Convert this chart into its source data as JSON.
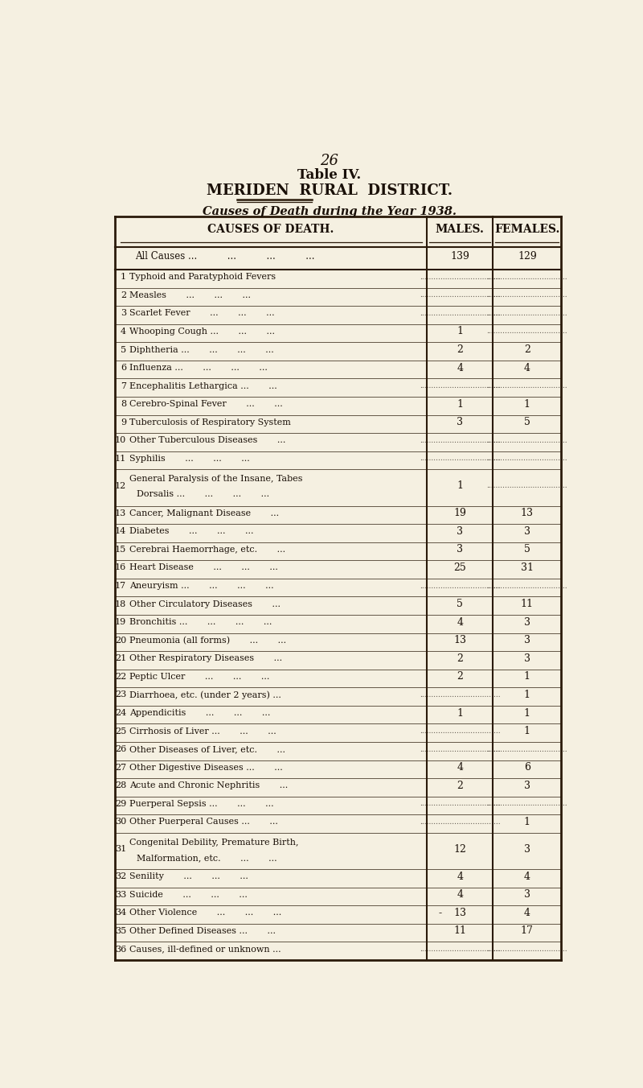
{
  "page_number": "26",
  "title_line1": "Table IV.",
  "title_line2": "MERIDEN  RURAL  DISTRICT.",
  "subtitle": "Causes of Death during the Year 1938.",
  "col_headers": [
    "CAUSES OF DEATH.",
    "MALES.",
    "FEMALES."
  ],
  "all_causes_label": "All Causes ...          ...          ...          ...",
  "all_causes_males": "139",
  "all_causes_females": "129",
  "rows": [
    {
      "num": "1",
      "cause": "Typhoid and Paratyphoid Fevers",
      "males": "",
      "females": "",
      "males_dots": true,
      "females_dots": true,
      "two_line": false
    },
    {
      "num": "2",
      "cause": "Measles       ...       ...       ...",
      "males": "",
      "females": "",
      "males_dots": true,
      "females_dots": true,
      "two_line": false
    },
    {
      "num": "3",
      "cause": "Scarlet Fever       ...       ...       ...",
      "males": "",
      "females": "",
      "males_dots": true,
      "females_dots": true,
      "two_line": false
    },
    {
      "num": "4",
      "cause": "Whooping Cough ...       ...       ...",
      "males": "1",
      "females": "",
      "males_dots": false,
      "females_dots": true,
      "two_line": false
    },
    {
      "num": "5",
      "cause": "Diphtheria ...       ...       ...       ...",
      "males": "2",
      "females": "2",
      "males_dots": false,
      "females_dots": false,
      "two_line": false
    },
    {
      "num": "6",
      "cause": "Influenza ...       ...       ...       ...",
      "males": "4",
      "females": "4",
      "males_dots": false,
      "females_dots": false,
      "two_line": false
    },
    {
      "num": "7",
      "cause": "Encephalitis Lethargica ...       ...",
      "males": "",
      "females": "",
      "males_dots": true,
      "females_dots": true,
      "two_line": false
    },
    {
      "num": "8",
      "cause": "Cerebro-Spinal Fever       ...       ...",
      "males": "1",
      "females": "1",
      "males_dots": false,
      "females_dots": false,
      "two_line": false
    },
    {
      "num": "9",
      "cause": "Tuberculosis of Respiratory System",
      "males": "3",
      "females": "5",
      "males_dots": false,
      "females_dots": false,
      "two_line": false
    },
    {
      "num": "10",
      "cause": "Other Tuberculous Diseases       ...",
      "males": "",
      "females": "",
      "males_dots": true,
      "females_dots": true,
      "two_line": false
    },
    {
      "num": "11",
      "cause": "Syphilis       ...       ...       ...",
      "males": "",
      "females": "",
      "males_dots": true,
      "females_dots": true,
      "two_line": false
    },
    {
      "num": "12",
      "cause": "General Paralysis of the Insane, Tabes",
      "cause2": "Dorsalis ...       ...       ...       ...",
      "males": "1",
      "females": "",
      "males_dots": false,
      "females_dots": true,
      "two_line": true
    },
    {
      "num": "13",
      "cause": "Cancer, Malignant Disease       ...",
      "males": "19",
      "females": "13",
      "males_dots": false,
      "females_dots": false,
      "two_line": false
    },
    {
      "num": "14",
      "cause": "Diabetes       ...       ...       ...",
      "males": "3",
      "females": "3",
      "males_dots": false,
      "females_dots": false,
      "two_line": false
    },
    {
      "num": "15",
      "cause": "Cerebrai Haemorrhage, etc.       ...",
      "males": "3",
      "females": "5",
      "males_dots": false,
      "females_dots": false,
      "two_line": false
    },
    {
      "num": "16",
      "cause": "Heart Disease       ...       ...       ...",
      "males": "25",
      "females": "31",
      "males_dots": false,
      "females_dots": false,
      "two_line": false
    },
    {
      "num": "17",
      "cause": "Aneuryism ...       ...       ...       ...",
      "males": "",
      "females": "",
      "males_dots": true,
      "females_dots": true,
      "two_line": false
    },
    {
      "num": "18",
      "cause": "Other Circulatory Diseases       ...",
      "males": "5",
      "females": "11",
      "males_dots": false,
      "females_dots": false,
      "two_line": false
    },
    {
      "num": "19",
      "cause": "Bronchitis ...       ...       ...       ...",
      "males": "4",
      "females": "3",
      "males_dots": false,
      "females_dots": false,
      "two_line": false
    },
    {
      "num": "20",
      "cause": "Pneumonia (all forms)       ...       ...",
      "males": "13",
      "females": "3",
      "males_dots": false,
      "females_dots": false,
      "two_line": false
    },
    {
      "num": "21",
      "cause": "Other Respiratory Diseases       ...",
      "males": "2",
      "females": "3",
      "males_dots": false,
      "females_dots": false,
      "two_line": false
    },
    {
      "num": "22",
      "cause": "Peptic Ulcer       ...       ...       ...",
      "males": "2",
      "females": "1",
      "males_dots": false,
      "females_dots": false,
      "two_line": false
    },
    {
      "num": "23",
      "cause": "Diarrhoea, etc. (under 2 years) ...",
      "males": "",
      "females": "1",
      "males_dots": true,
      "females_dots": false,
      "two_line": false
    },
    {
      "num": "24",
      "cause": "Appendicitis       ...       ...       ...",
      "males": "1",
      "females": "1",
      "males_dots": false,
      "females_dots": false,
      "two_line": false
    },
    {
      "num": "25",
      "cause": "Cirrhosis of Liver ...       ...       ...",
      "males": "",
      "females": "1",
      "males_dots": true,
      "females_dots": false,
      "two_line": false
    },
    {
      "num": "26",
      "cause": "Other Diseases of Liver, etc.       ...",
      "males": "",
      "females": "",
      "males_dots": true,
      "females_dots": true,
      "two_line": false
    },
    {
      "num": "27",
      "cause": "Other Digestive Diseases ...       ...",
      "males": "4",
      "females": "6",
      "males_dots": false,
      "females_dots": false,
      "two_line": false
    },
    {
      "num": "28",
      "cause": "Acute and Chronic Nephritis       ...",
      "males": "2",
      "females": "3",
      "males_dots": false,
      "females_dots": false,
      "two_line": false
    },
    {
      "num": "29",
      "cause": "Puerperal Sepsis ...       ...       ...",
      "males": "",
      "females": "",
      "males_dots": true,
      "females_dots": true,
      "two_line": false
    },
    {
      "num": "30",
      "cause": "Other Puerperal Causes ...       ...",
      "males": "",
      "females": "1",
      "males_dots": true,
      "females_dots": false,
      "two_line": false
    },
    {
      "num": "31",
      "cause": "Congenital Debility, Premature Birth,",
      "cause2": "Malformation, etc.       ...       ...",
      "males": "12",
      "females": "3",
      "males_dots": false,
      "females_dots": false,
      "two_line": true
    },
    {
      "num": "32",
      "cause": "Senility       ...       ...       ...",
      "males": "4",
      "females": "4",
      "males_dots": false,
      "females_dots": false,
      "two_line": false
    },
    {
      "num": "33",
      "cause": "Suicide       ...       ...       ...",
      "males": "4",
      "females": "3",
      "males_dots": false,
      "females_dots": false,
      "two_line": false
    },
    {
      "num": "34",
      "cause": "Other Violence       ...       ...       ...",
      "males": "13",
      "females": "4",
      "males_dots": false,
      "females_dots": false,
      "two_line": false,
      "males_prefix": "-"
    },
    {
      "num": "35",
      "cause": "Other Defined Diseases ...       ...",
      "males": "11",
      "females": "17",
      "males_dots": false,
      "females_dots": false,
      "two_line": false
    },
    {
      "num": "36",
      "cause": "Causes, ill-defined or unknown ...",
      "males": "",
      "females": "",
      "males_dots": true,
      "females_dots": true,
      "two_line": false
    }
  ],
  "bg_color": "#f5f0e1",
  "text_color": "#1a1008",
  "border_color": "#2a1a0a"
}
